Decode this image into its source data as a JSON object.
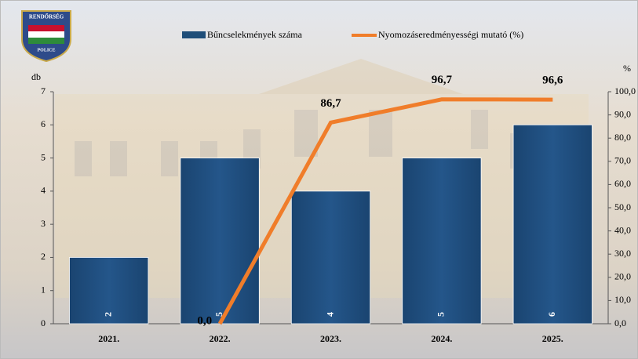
{
  "logo": {
    "top": "RENDŐRSÉG",
    "bottom": "POLICE"
  },
  "chart_data": {
    "type": "bar",
    "categories": [
      "2021.",
      "2022.",
      "2023.",
      "2024.",
      "2025."
    ],
    "ylabel": "db",
    "y2label": "%",
    "ylim": [
      0,
      7
    ],
    "yticks": [
      0,
      1,
      2,
      3,
      4,
      5,
      6,
      7
    ],
    "y2lim": [
      0,
      100
    ],
    "y2ticks": [
      {
        "value": 0,
        "label": "0,0"
      },
      {
        "value": 10,
        "label": "10,0"
      },
      {
        "value": 20,
        "label": "20,0"
      },
      {
        "value": 30,
        "label": "30,0"
      },
      {
        "value": 40,
        "label": "40,0"
      },
      {
        "value": 50,
        "label": "50,0"
      },
      {
        "value": 60,
        "label": "60,0"
      },
      {
        "value": 70,
        "label": "70,0"
      },
      {
        "value": 80,
        "label": "80,0"
      },
      {
        "value": 90,
        "label": "90,0"
      },
      {
        "value": 100,
        "label": "100,0"
      }
    ],
    "series": [
      {
        "name": "Bűncselekmények száma",
        "type": "bar",
        "color": "#1f4e79",
        "values": [
          2,
          5,
          4,
          5,
          6
        ]
      },
      {
        "name": "Nyomozáseredményességi mutató (%)",
        "type": "line",
        "axis": "y2",
        "color": "#f07d2a",
        "values": [
          null,
          0,
          86.7,
          96.7,
          96.6
        ],
        "value_labels": [
          null,
          "0,0",
          "86,7",
          "96,7",
          "96,6"
        ]
      }
    ]
  }
}
